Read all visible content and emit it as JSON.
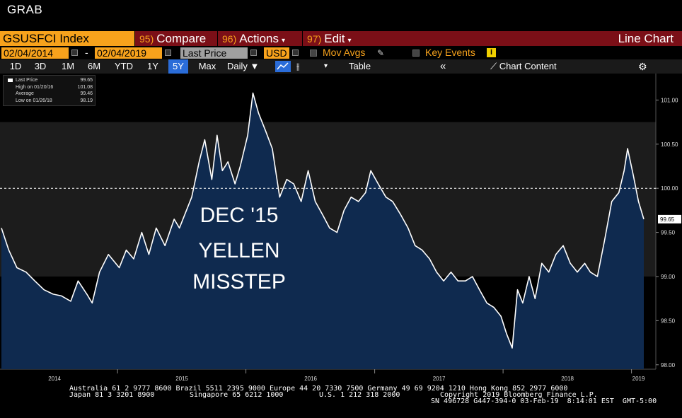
{
  "window": {
    "title": "GRAB"
  },
  "toolbar": {
    "ticker": "GSUSFCI Index",
    "compare_num": "95)",
    "compare_label": "Compare",
    "actions_num": "96)",
    "actions_label": "Actions",
    "edit_num": "97)",
    "edit_label": "Edit",
    "chart_type": "Line Chart",
    "start_date": "02/04/2014",
    "end_date": "02/04/2019",
    "date_sep": "-",
    "price_field": "Last Price",
    "currency": "USD",
    "mov_avgs": "Mov Avgs",
    "key_events": "Key Events",
    "info_glyph": "i"
  },
  "ranges": [
    "1D",
    "3D",
    "1M",
    "6M",
    "YTD",
    "1Y",
    "5Y",
    "Max"
  ],
  "active_range": "5Y",
  "frequency": "Daily",
  "table_label": "Table",
  "chart_content_label": "Chart Content",
  "legend": {
    "rows": [
      {
        "label": "Last Price",
        "value": "99.65"
      },
      {
        "label": "High on 01/20/16",
        "value": "101.08"
      },
      {
        "label": "Average",
        "value": "99.46"
      },
      {
        "label": "Low on 01/26/18",
        "value": "98.19"
      }
    ]
  },
  "annotation": {
    "line1": "DEC '15",
    "line2": "YELLEN",
    "line3": "MISSTEP"
  },
  "last_price_tag": "99.65",
  "colors": {
    "accent": "#f7a21c",
    "menu_bar": "#7b0f17",
    "fill": "#0f2a4f",
    "line": "#ffffff",
    "active": "#2a6cd8"
  },
  "chart_data": {
    "type": "area",
    "title": "",
    "xlabel": "",
    "ylabel": "",
    "ylim": [
      97.95,
      101.3
    ],
    "reference_line": 100.0,
    "y_ticks": [
      "101.00",
      "100.50",
      "100.00",
      "99.50",
      "99.00",
      "98.50",
      "98.00"
    ],
    "x_tick_labels": [
      "2014",
      "2015",
      "2016",
      "2017",
      "2018",
      "2019"
    ],
    "x_range": [
      "2014-02-04",
      "2019-02-04"
    ],
    "series": [
      {
        "values": [
          [
            "2014-02-04",
            99.55
          ],
          [
            "2014-02-25",
            99.3
          ],
          [
            "2014-03-20",
            99.1
          ],
          [
            "2014-04-15",
            99.05
          ],
          [
            "2014-05-10",
            98.95
          ],
          [
            "2014-06-05",
            98.85
          ],
          [
            "2014-07-01",
            98.8
          ],
          [
            "2014-07-25",
            98.78
          ],
          [
            "2014-08-20",
            98.72
          ],
          [
            "2014-09-10",
            98.95
          ],
          [
            "2014-10-05",
            98.8
          ],
          [
            "2014-10-20",
            98.7
          ],
          [
            "2014-11-10",
            99.05
          ],
          [
            "2014-12-05",
            99.25
          ],
          [
            "2015-01-05",
            99.1
          ],
          [
            "2015-01-25",
            99.3
          ],
          [
            "2015-02-15",
            99.2
          ],
          [
            "2015-03-10",
            99.5
          ],
          [
            "2015-03-30",
            99.25
          ],
          [
            "2015-04-20",
            99.55
          ],
          [
            "2015-05-15",
            99.35
          ],
          [
            "2015-06-10",
            99.65
          ],
          [
            "2015-06-25",
            99.55
          ],
          [
            "2015-07-10",
            99.7
          ],
          [
            "2015-07-30",
            99.9
          ],
          [
            "2015-08-20",
            100.3
          ],
          [
            "2015-09-05",
            100.55
          ],
          [
            "2015-09-25",
            100.1
          ],
          [
            "2015-10-10",
            100.6
          ],
          [
            "2015-10-25",
            100.2
          ],
          [
            "2015-11-10",
            100.3
          ],
          [
            "2015-11-30",
            100.05
          ],
          [
            "2015-12-15",
            100.25
          ],
          [
            "2016-01-05",
            100.6
          ],
          [
            "2016-01-20",
            101.08
          ],
          [
            "2016-02-05",
            100.85
          ],
          [
            "2016-02-25",
            100.65
          ],
          [
            "2016-03-15",
            100.45
          ],
          [
            "2016-04-05",
            99.9
          ],
          [
            "2016-04-25",
            100.1
          ],
          [
            "2016-05-15",
            100.05
          ],
          [
            "2016-06-05",
            99.85
          ],
          [
            "2016-06-25",
            100.2
          ],
          [
            "2016-07-15",
            99.85
          ],
          [
            "2016-08-05",
            99.7
          ],
          [
            "2016-08-25",
            99.55
          ],
          [
            "2016-09-15",
            99.5
          ],
          [
            "2016-10-05",
            99.75
          ],
          [
            "2016-10-25",
            99.9
          ],
          [
            "2016-11-15",
            99.85
          ],
          [
            "2016-12-05",
            99.95
          ],
          [
            "2016-12-20",
            100.2
          ],
          [
            "2017-01-10",
            100.05
          ],
          [
            "2017-02-01",
            99.9
          ],
          [
            "2017-02-20",
            99.85
          ],
          [
            "2017-03-15",
            99.7
          ],
          [
            "2017-04-05",
            99.55
          ],
          [
            "2017-04-25",
            99.35
          ],
          [
            "2017-05-15",
            99.3
          ],
          [
            "2017-06-05",
            99.2
          ],
          [
            "2017-06-25",
            99.05
          ],
          [
            "2017-07-15",
            98.95
          ],
          [
            "2017-08-05",
            99.05
          ],
          [
            "2017-08-25",
            98.95
          ],
          [
            "2017-09-15",
            98.95
          ],
          [
            "2017-10-05",
            99.0
          ],
          [
            "2017-10-25",
            98.85
          ],
          [
            "2017-11-15",
            98.7
          ],
          [
            "2017-12-05",
            98.65
          ],
          [
            "2017-12-25",
            98.55
          ],
          [
            "2018-01-10",
            98.35
          ],
          [
            "2018-01-26",
            98.19
          ],
          [
            "2018-02-10",
            98.85
          ],
          [
            "2018-02-25",
            98.7
          ],
          [
            "2018-03-15",
            99.0
          ],
          [
            "2018-04-01",
            98.75
          ],
          [
            "2018-04-20",
            99.15
          ],
          [
            "2018-05-10",
            99.05
          ],
          [
            "2018-05-30",
            99.25
          ],
          [
            "2018-06-20",
            99.35
          ],
          [
            "2018-07-10",
            99.15
          ],
          [
            "2018-07-30",
            99.05
          ],
          [
            "2018-08-20",
            99.15
          ],
          [
            "2018-09-05",
            99.05
          ],
          [
            "2018-09-25",
            99.0
          ],
          [
            "2018-10-15",
            99.4
          ],
          [
            "2018-11-05",
            99.85
          ],
          [
            "2018-11-25",
            99.95
          ],
          [
            "2018-12-10",
            100.2
          ],
          [
            "2018-12-20",
            100.45
          ],
          [
            "2019-01-05",
            100.15
          ],
          [
            "2019-01-20",
            99.85
          ],
          [
            "2019-02-04",
            99.65
          ]
        ]
      }
    ]
  },
  "footer": {
    "line1": "Australia 61 2 9777 8600 Brazil 5511 2395 9000 Europe 44 20 7330 7500 Germany 49 69 9204 1210 Hong Kong 852 2977 6000",
    "line2a": "Japan 81 3 3201 8900",
    "line2b": "Singapore 65 6212 1000",
    "line2c": "U.S. 1 212 318 2000",
    "line2d": "Copyright 2019 Bloomberg Finance L.P.",
    "line3": "SN 496728 G447-394-0 03-Feb-19  8:14:01 EST  GMT-5:00"
  }
}
